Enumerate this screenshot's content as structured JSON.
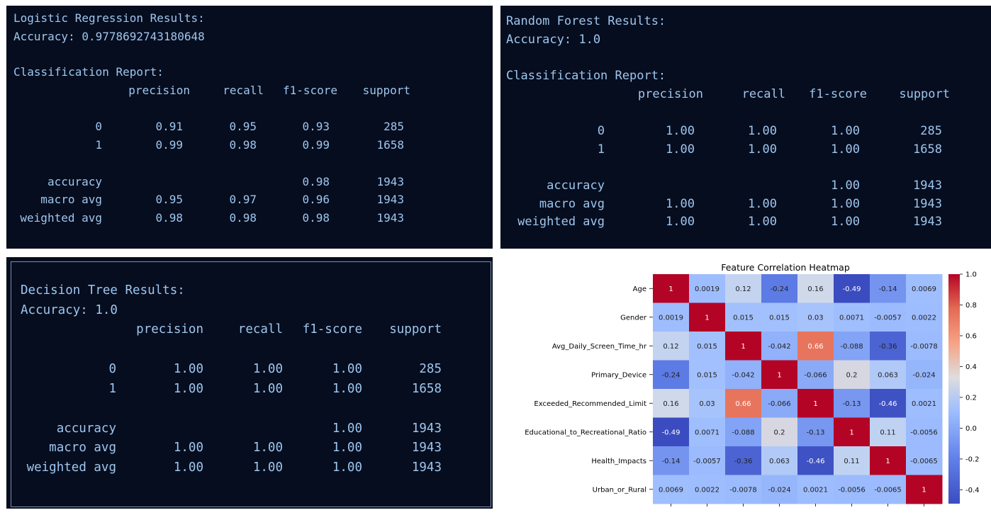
{
  "reports": {
    "lr": {
      "title": "Logistic Regression Results:",
      "accuracy_line": "Accuracy: 0.9778692743180648",
      "report_label": "Classification Report:",
      "headers": [
        "precision",
        "recall",
        "f1-score",
        "support"
      ],
      "rows": [
        {
          "label": "0",
          "values": [
            "0.91",
            "0.95",
            "0.93",
            "285"
          ]
        },
        {
          "label": "1",
          "values": [
            "0.99",
            "0.98",
            "0.99",
            "1658"
          ]
        },
        {
          "label": "accuracy",
          "values": [
            "",
            "",
            "0.98",
            "1943"
          ]
        },
        {
          "label": "macro avg",
          "values": [
            "0.95",
            "0.97",
            "0.96",
            "1943"
          ]
        },
        {
          "label": "weighted avg",
          "values": [
            "0.98",
            "0.98",
            "0.98",
            "1943"
          ]
        }
      ]
    },
    "rf": {
      "title": "Random Forest Results:",
      "accuracy_line": "Accuracy: 1.0",
      "report_label": "Classification Report:",
      "headers": [
        "precision",
        "recall",
        "f1-score",
        "support"
      ],
      "rows": [
        {
          "label": "0",
          "values": [
            "1.00",
            "1.00",
            "1.00",
            "285"
          ]
        },
        {
          "label": "1",
          "values": [
            "1.00",
            "1.00",
            "1.00",
            "1658"
          ]
        },
        {
          "label": "accuracy",
          "values": [
            "",
            "",
            "1.00",
            "1943"
          ]
        },
        {
          "label": "macro avg",
          "values": [
            "1.00",
            "1.00",
            "1.00",
            "1943"
          ]
        },
        {
          "label": "weighted avg",
          "values": [
            "1.00",
            "1.00",
            "1.00",
            "1943"
          ]
        }
      ]
    },
    "dt": {
      "title": "Decision Tree Results:",
      "accuracy_line": "Accuracy: 1.0",
      "headers": [
        "precision",
        "recall",
        "f1-score",
        "support"
      ],
      "rows": [
        {
          "label": "0",
          "values": [
            "1.00",
            "1.00",
            "1.00",
            "285"
          ]
        },
        {
          "label": "1",
          "values": [
            "1.00",
            "1.00",
            "1.00",
            "1658"
          ]
        },
        {
          "label": "accuracy",
          "values": [
            "",
            "",
            "1.00",
            "1943"
          ]
        },
        {
          "label": "macro avg",
          "values": [
            "1.00",
            "1.00",
            "1.00",
            "1943"
          ]
        },
        {
          "label": "weighted avg",
          "values": [
            "1.00",
            "1.00",
            "1.00",
            "1943"
          ]
        }
      ]
    }
  },
  "colors": {
    "terminal_bg": "#060d1e",
    "terminal_text": "#9ec6ef",
    "colormap": "coolwarm"
  },
  "chart_data": {
    "type": "heatmap",
    "title": "Feature Correlation Heatmap",
    "row_labels": [
      "Age",
      "Gender",
      "Avg_Daily_Screen_Time_hr",
      "Primary_Device",
      "Exceeded_Recommended_Limit",
      "Educational_to_Recreational_Ratio",
      "Health_Impacts",
      "Urban_or_Rural"
    ],
    "values": [
      [
        1,
        0.0019,
        0.12,
        -0.24,
        0.16,
        -0.49,
        -0.14,
        0.0069
      ],
      [
        0.0019,
        1,
        0.015,
        0.015,
        0.03,
        0.0071,
        -0.0057,
        0.0022
      ],
      [
        0.12,
        0.015,
        1,
        -0.042,
        0.66,
        -0.088,
        -0.36,
        -0.0078
      ],
      [
        -0.24,
        0.015,
        -0.042,
        1,
        -0.066,
        0.2,
        0.063,
        -0.024
      ],
      [
        0.16,
        0.03,
        0.66,
        -0.066,
        1,
        -0.13,
        -0.46,
        0.0021
      ],
      [
        -0.49,
        0.0071,
        -0.088,
        0.2,
        -0.13,
        1,
        0.11,
        -0.0056
      ],
      [
        -0.14,
        -0.0057,
        -0.36,
        0.063,
        -0.46,
        0.11,
        1,
        -0.0065
      ],
      [
        0.0069,
        0.0022,
        -0.0078,
        -0.024,
        0.0021,
        -0.0056,
        -0.0065,
        1
      ]
    ],
    "colorbar_ticks": [
      "1.0",
      "0.8",
      "0.6",
      "0.4",
      "0.2",
      "0.0",
      "-0.2",
      "-0.4"
    ],
    "colorbar_range": [
      -0.49,
      1.0
    ]
  }
}
